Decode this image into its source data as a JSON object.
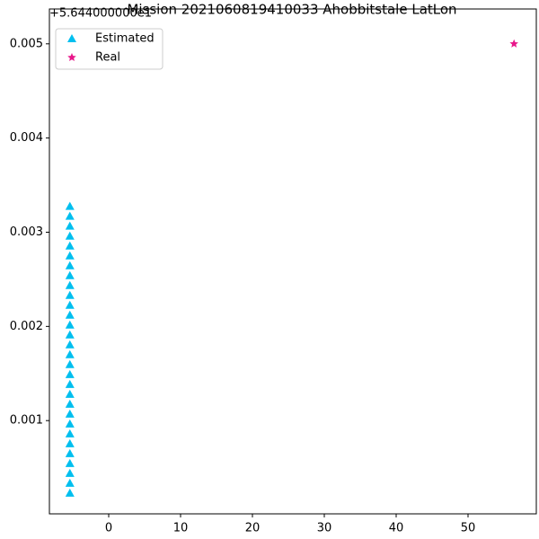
{
  "chart_data": {
    "type": "scatter",
    "title": "Mission 2021060819410033 Ahobbitstale LatLon",
    "offset_label": "+5.644000000e1",
    "xlim": [
      -8.25,
      59.5
    ],
    "xticks": [
      0,
      10,
      20,
      30,
      40,
      50
    ],
    "ylim": [
      1e-05,
      0.00537
    ],
    "yticks": [
      0.001,
      0.002,
      0.003,
      0.004,
      0.005
    ],
    "legend": "upper left",
    "grid": false,
    "series": [
      {
        "name": "Estimated",
        "color": "#00bfef",
        "marker": "triangle",
        "x": [
          -5.4,
          -5.4,
          -5.4,
          -5.4,
          -5.4,
          -5.4,
          -5.4,
          -5.4,
          -5.4,
          -5.4,
          -5.4,
          -5.4,
          -5.4,
          -5.4,
          -5.4,
          -5.4,
          -5.4,
          -5.4,
          -5.4,
          -5.4,
          -5.4,
          -5.4,
          -5.4,
          -5.4,
          -5.4,
          -5.4,
          -5.4,
          -5.4,
          -5.4,
          -5.4
        ],
        "values": [
          0.00023,
          0.000335,
          0.00044,
          0.000545,
          0.00065,
          0.000755,
          0.00086,
          0.000965,
          0.00107,
          0.001175,
          0.00128,
          0.001385,
          0.00149,
          0.001595,
          0.0017,
          0.001805,
          0.00191,
          0.002015,
          0.00212,
          0.002225,
          0.00233,
          0.002435,
          0.00254,
          0.002645,
          0.00275,
          0.002855,
          0.00296,
          0.003065,
          0.00317,
          0.003275
        ]
      },
      {
        "name": "Real",
        "color": "#e8178a",
        "marker": "star",
        "x": [
          56.4
        ],
        "values": [
          0.005
        ]
      }
    ]
  }
}
